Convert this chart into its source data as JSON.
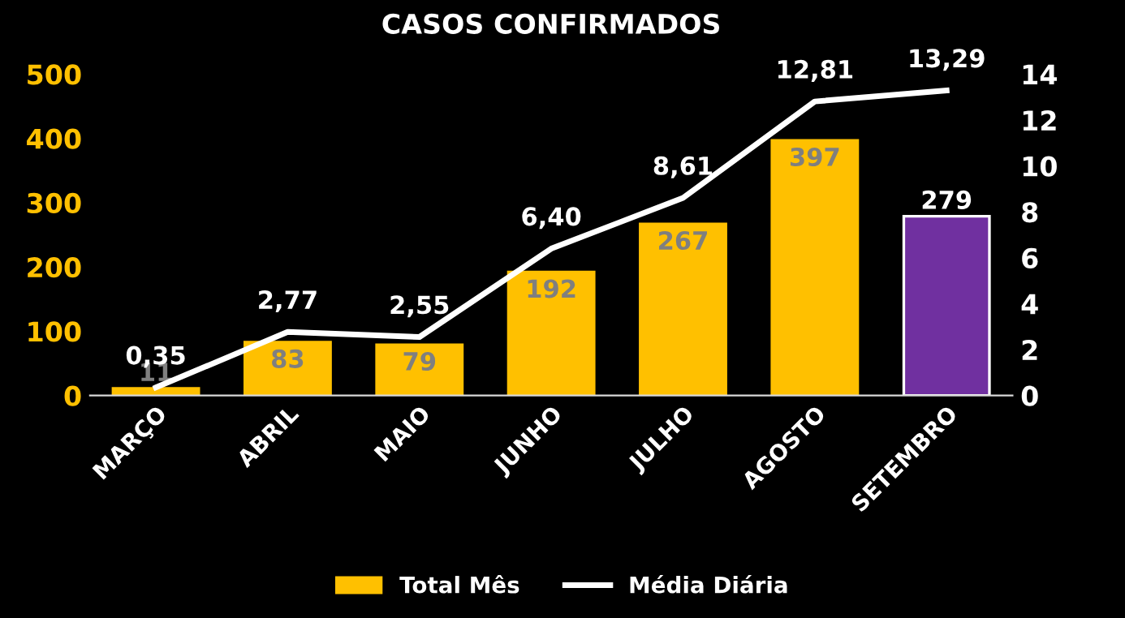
{
  "chart_data": {
    "type": "bar",
    "title": "CASOS CONFIRMADOS",
    "categories": [
      "MARÇO",
      "ABRIL",
      "MAIO",
      "JUNHO",
      "JULHO",
      "AGOSTO",
      "SETEMBRO"
    ],
    "series": [
      {
        "name": "Total Mês",
        "color": "#ffc000",
        "colors": [
          "#ffc000",
          "#ffc000",
          "#ffc000",
          "#ffc000",
          "#ffc000",
          "#ffc000",
          "#7030a0"
        ],
        "values": [
          11,
          83,
          79,
          192,
          267,
          397,
          279
        ],
        "value_labels": [
          "11",
          "83",
          "79",
          "192",
          "267",
          "397",
          "279"
        ]
      },
      {
        "name": "Média Diária",
        "type": "line",
        "axis": "y2",
        "color": "#ffffff",
        "values": [
          0.35,
          2.77,
          2.55,
          6.4,
          8.61,
          12.81,
          13.29
        ],
        "value_labels": [
          "0,35",
          "2,77",
          "2,55",
          "6,40",
          "8,61",
          "12,81",
          "13,29"
        ]
      }
    ],
    "ylim": [
      0,
      500
    ],
    "yticks": [
      0,
      100,
      200,
      300,
      400,
      500
    ],
    "y2lim": [
      0,
      14
    ],
    "y2ticks": [
      0,
      2,
      4,
      6,
      8,
      10,
      12,
      14
    ],
    "grid": false,
    "legend": "bottom",
    "marker": "none",
    "line_style": "solid"
  }
}
